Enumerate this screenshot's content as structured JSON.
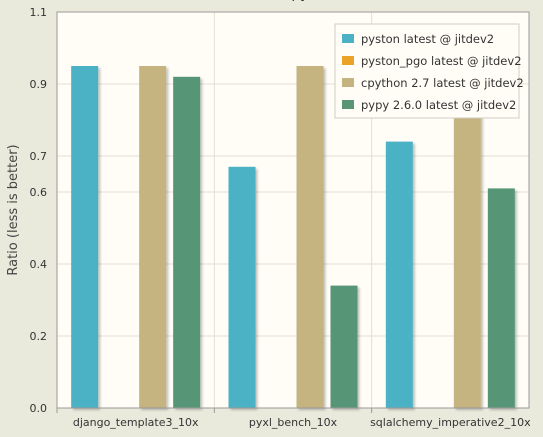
{
  "chart_data": {
    "type": "bar",
    "title": "py",
    "ylabel": "Ratio   (less is better)",
    "xlabel": "",
    "ylim": [
      0.0,
      1.1
    ],
    "yticks": [
      "0.0",
      "0.2",
      "0.4",
      "0.6",
      "0.7",
      "0.9",
      "1.1"
    ],
    "ytick_values": [
      0.0,
      0.2,
      0.4,
      0.6,
      0.7,
      0.9,
      1.1
    ],
    "categories": [
      "django_template3_10x",
      "pyxl_bench_10x",
      "sqlalchemy_imperative2_10x"
    ],
    "series": [
      {
        "name": "pyston latest @ jitdev2",
        "color": "#4bb2c5",
        "values": [
          0.95,
          0.67,
          0.74
        ]
      },
      {
        "name": "pyston_pgo latest @ jitdev2",
        "color": "#eaa228",
        "values": [
          null,
          null,
          null
        ]
      },
      {
        "name": "cpython 2.7 latest @ jitdev2",
        "color": "#c5b47f",
        "values": [
          0.95,
          0.95,
          0.95
        ]
      },
      {
        "name": "pypy 2.6.0 latest @ jitdev2",
        "color": "#579575",
        "values": [
          0.92,
          0.34,
          0.61
        ]
      }
    ],
    "grid": true,
    "legend_position": "top-right"
  }
}
